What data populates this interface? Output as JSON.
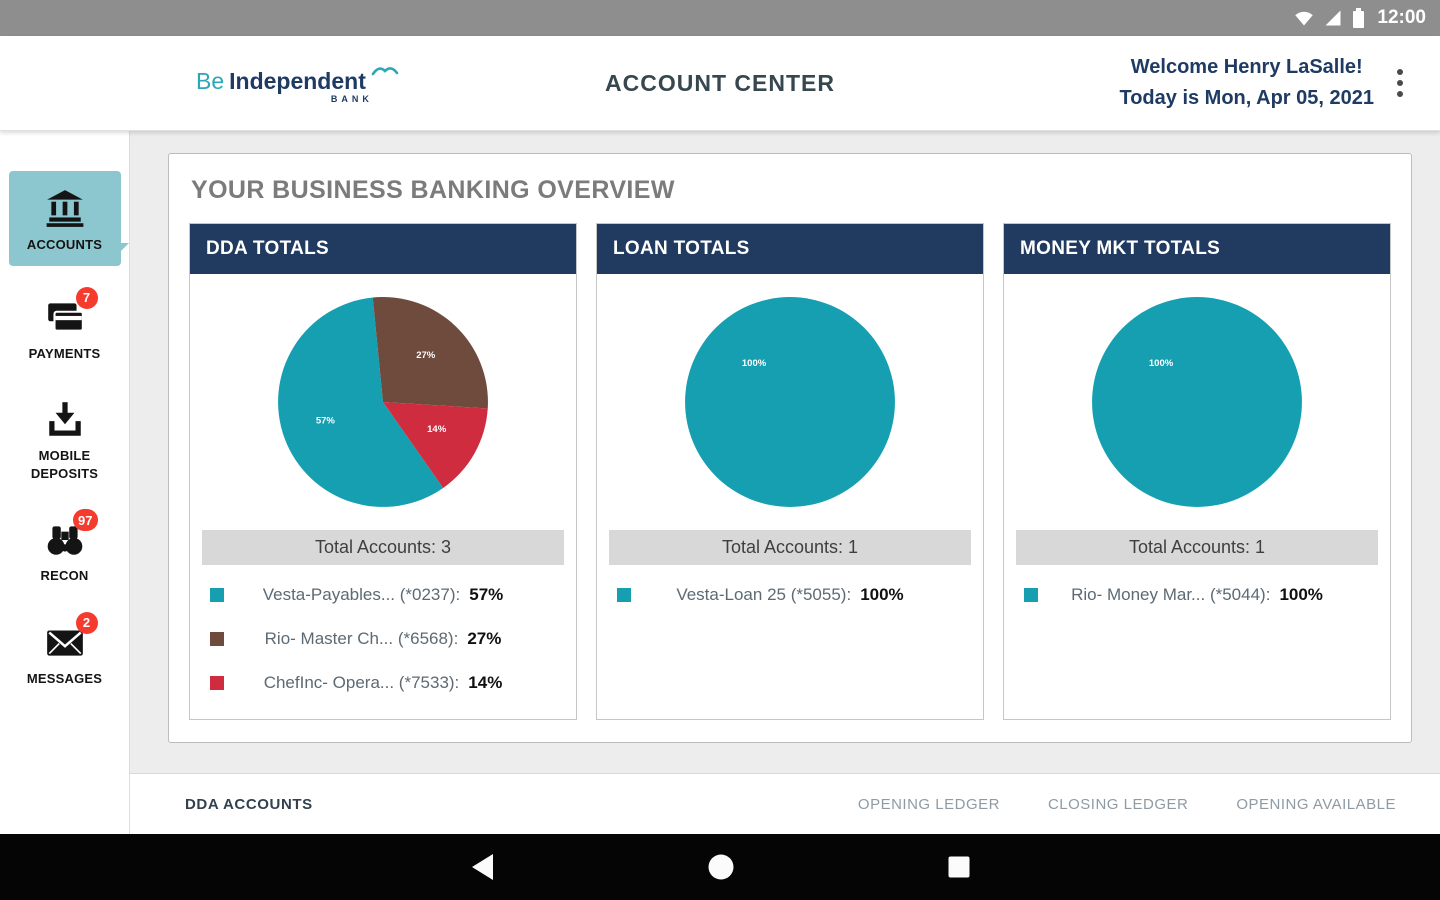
{
  "status_bar": {
    "time": "12:00",
    "icons": [
      "wifi",
      "signal",
      "battery"
    ]
  },
  "header": {
    "logo": {
      "prefix": "Be",
      "name": "Independent",
      "sub": "BANK",
      "icon": "bird-swoosh"
    },
    "title": "ACCOUNT CENTER",
    "welcome_line1": "Welcome Henry LaSalle!",
    "welcome_line2": "Today is Mon, Apr 05, 2021",
    "menu_icon": "vertical-ellipsis"
  },
  "sidebar": {
    "items": [
      {
        "label": "ACCOUNTS",
        "icon": "bank",
        "active": true
      },
      {
        "label": "PAYMENTS",
        "icon": "payments-card",
        "badge": "7",
        "active": false
      },
      {
        "label": "MOBILE DEPOSITS",
        "icon": "mobile-deposit",
        "active": false
      },
      {
        "label": "RECON",
        "icon": "binoculars",
        "badge": "97",
        "active": false
      },
      {
        "label": "MESSAGES",
        "icon": "envelope",
        "badge": "2",
        "active": false
      }
    ]
  },
  "overview": {
    "heading": "YOUR BUSINESS BANKING OVERVIEW"
  },
  "chart_data": [
    {
      "type": "pie",
      "title": "DDA TOTALS",
      "total_label": "Total Accounts: 3",
      "start_angle": 145,
      "legend_position": "bottom",
      "slices": [
        {
          "name": "Vesta-Payables... (*0237):",
          "percent_label": "57%",
          "value": 57,
          "color": "#169fb1"
        },
        {
          "name": "Rio- Master Ch... (*6568):",
          "percent_label": "27%",
          "value": 27,
          "color": "#6e4b3d"
        },
        {
          "name": "ChefInc- Opera... (*7533):",
          "percent_label": "14%",
          "value": 14,
          "color": "#d02c40"
        }
      ]
    },
    {
      "type": "pie",
      "title": "LOAN TOTALS",
      "total_label": "Total Accounts: 1",
      "start_angle": 0,
      "legend_position": "bottom",
      "slices": [
        {
          "name": "Vesta-Loan 25 (*5055):",
          "percent_label": "100%",
          "value": 100,
          "color": "#169fb1"
        }
      ]
    },
    {
      "type": "pie",
      "title": "MONEY MKT TOTALS",
      "total_label": "Total Accounts: 1",
      "start_angle": 0,
      "legend_position": "bottom",
      "slices": [
        {
          "name": "Rio- Money Mar... (*5044):",
          "percent_label": "100%",
          "value": 100,
          "color": "#169fb1"
        }
      ]
    }
  ],
  "table": {
    "left_header": "DDA ACCOUNTS",
    "columns": [
      "OPENING LEDGER",
      "CLOSING LEDGER",
      "OPENING AVAILABLE"
    ]
  },
  "nav_bar": {
    "buttons": [
      {
        "icon": "back"
      },
      {
        "icon": "home"
      },
      {
        "icon": "recents"
      }
    ]
  },
  "colors": {
    "accent_teal": "#169fb1",
    "navy_header": "#203a60",
    "badge_red": "#f43b2e",
    "active_item_bg": "#8cc6ce",
    "status_bar_gray": "#8e8e8e"
  }
}
